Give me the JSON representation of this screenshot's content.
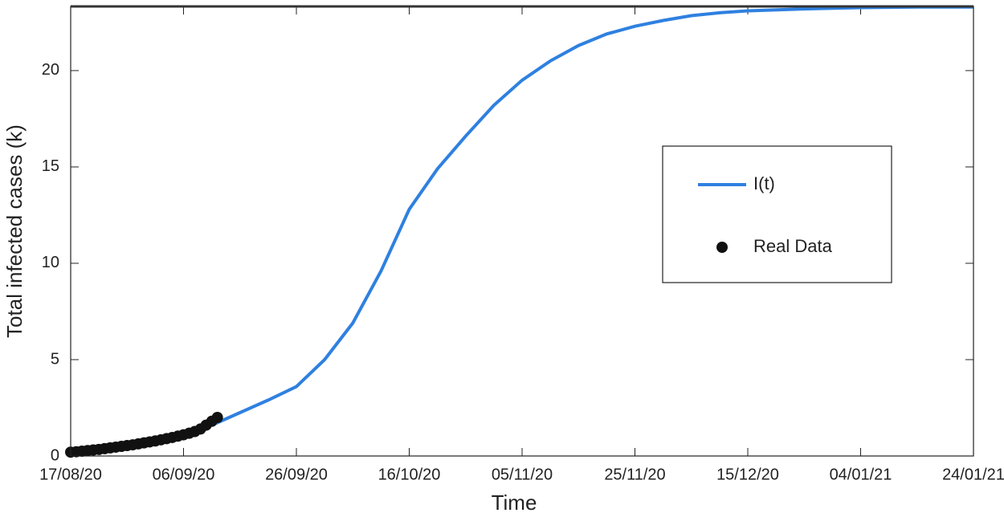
{
  "chart_data": {
    "type": "line",
    "xlabel": "Time",
    "ylabel": "Total infected cases (k)",
    "xlim": [
      "2020-08-17",
      "2021-01-24"
    ],
    "xticks": [
      {
        "value": "2020-08-17",
        "label": "17/08/20"
      },
      {
        "value": "2020-09-06",
        "label": "06/09/20"
      },
      {
        "value": "2020-09-26",
        "label": "26/09/20"
      },
      {
        "value": "2020-10-16",
        "label": "16/10/20"
      },
      {
        "value": "2020-11-05",
        "label": "05/11/20"
      },
      {
        "value": "2020-11-25",
        "label": "25/11/20"
      },
      {
        "value": "2020-12-15",
        "label": "15/12/20"
      },
      {
        "value": "2021-01-04",
        "label": "04/01/21"
      },
      {
        "value": "2021-01-24",
        "label": "24/01/21"
      }
    ],
    "ylim": [
      0,
      23.33
    ],
    "yticks": [
      0,
      5,
      10,
      15,
      20
    ],
    "legend": "right",
    "series": [
      {
        "name": "I(t)",
        "type": "line",
        "color": "#2f80e0",
        "x": [
          "2020-08-17",
          "2020-08-22",
          "2020-08-27",
          "2020-09-01",
          "2020-09-06",
          "2020-09-11",
          "2020-09-16",
          "2020-09-21",
          "2020-09-26",
          "2020-10-01",
          "2020-10-06",
          "2020-10-11",
          "2020-10-16",
          "2020-10-21",
          "2020-10-26",
          "2020-10-31",
          "2020-11-05",
          "2020-11-10",
          "2020-11-15",
          "2020-11-20",
          "2020-11-25",
          "2020-11-30",
          "2020-12-05",
          "2020-12-10",
          "2020-12-15",
          "2020-12-25",
          "2021-01-04",
          "2021-01-14",
          "2021-01-24"
        ],
        "values": [
          0.2,
          0.35,
          0.55,
          0.8,
          1.1,
          1.6,
          2.25,
          2.9,
          3.6,
          5.0,
          6.9,
          9.6,
          12.8,
          14.9,
          16.6,
          18.2,
          19.5,
          20.5,
          21.3,
          21.9,
          22.3,
          22.6,
          22.85,
          23.0,
          23.1,
          23.2,
          23.27,
          23.3,
          23.3
        ]
      },
      {
        "name": "Real Data",
        "type": "scatter",
        "color": "#111111",
        "x": [
          "2020-08-17",
          "2020-08-18",
          "2020-08-19",
          "2020-08-20",
          "2020-08-21",
          "2020-08-22",
          "2020-08-23",
          "2020-08-24",
          "2020-08-25",
          "2020-08-26",
          "2020-08-27",
          "2020-08-28",
          "2020-08-29",
          "2020-08-30",
          "2020-08-31",
          "2020-09-01",
          "2020-09-02",
          "2020-09-03",
          "2020-09-04",
          "2020-09-05",
          "2020-09-06",
          "2020-09-07",
          "2020-09-08",
          "2020-09-09",
          "2020-09-10",
          "2020-09-11",
          "2020-09-12"
        ],
        "values": [
          0.2,
          0.22,
          0.25,
          0.28,
          0.31,
          0.34,
          0.38,
          0.42,
          0.46,
          0.5,
          0.54,
          0.58,
          0.63,
          0.68,
          0.73,
          0.78,
          0.84,
          0.9,
          0.96,
          1.03,
          1.1,
          1.18,
          1.27,
          1.4,
          1.6,
          1.8,
          2.0
        ]
      }
    ]
  }
}
